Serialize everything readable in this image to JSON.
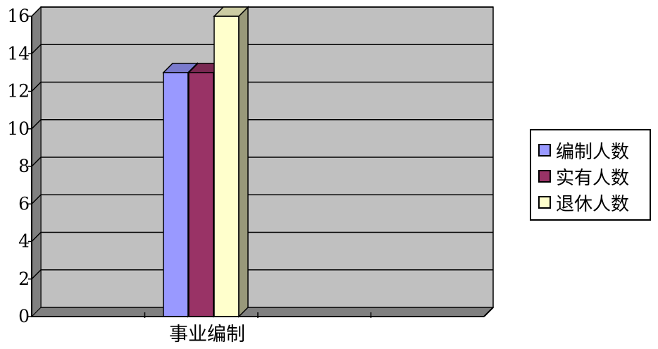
{
  "chart_data": {
    "type": "bar",
    "categories": [
      "事业编制"
    ],
    "series": [
      {
        "name": "编制人数",
        "values": [
          13
        ]
      },
      {
        "name": "实有人数",
        "values": [
          13
        ]
      },
      {
        "name": "退休人数",
        "values": [
          16
        ]
      }
    ],
    "ylim": [
      0,
      16
    ],
    "yticks": [
      "0",
      "2",
      "4",
      "6",
      "8",
      "10",
      "12",
      "14",
      "16"
    ],
    "grid": true,
    "legend_position": "right",
    "style": "3d-column",
    "colors": {
      "series": [
        "#9999ff",
        "#993366",
        "#ffffcc"
      ],
      "series_side": [
        "#5c5c99",
        "#5c1f3d",
        "#99997a"
      ],
      "series_top": [
        "#7a7acc",
        "#7a2952",
        "#ccccA3"
      ],
      "plot_background": "#c0c0c0",
      "wall_side": "#808080",
      "gridline": "#000000"
    }
  }
}
